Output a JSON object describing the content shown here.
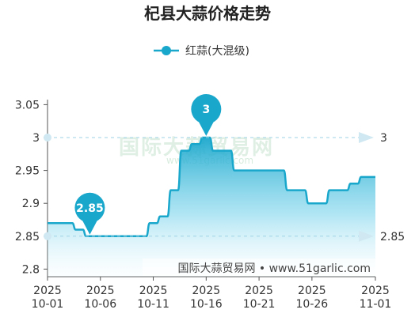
{
  "chart_data": {
    "type": "area",
    "title": "杞县大蒜价格走势",
    "xlabel": "",
    "ylabel": "",
    "ylim": [
      2.78,
      3.07
    ],
    "yticks": [
      "3.05",
      "3",
      "2.95",
      "2.9",
      "2.85",
      "2.8"
    ],
    "xticks": [
      {
        "year": "2025",
        "date": "10-01"
      },
      {
        "year": "2025",
        "date": "10-06"
      },
      {
        "year": "2025",
        "date": "10-11"
      },
      {
        "year": "2025",
        "date": "10-16"
      },
      {
        "year": "2025",
        "date": "10-21"
      },
      {
        "year": "2025",
        "date": "10-26"
      },
      {
        "year": "2025",
        "date": "11-01"
      }
    ],
    "legend": {
      "position": "top",
      "entries": [
        "红蒜(大混级)"
      ]
    },
    "grid": false,
    "series": [
      {
        "name": "红蒜(大混级)",
        "color": "#1aa7cc",
        "points": [
          [
            "10-01",
            2.87
          ],
          [
            "10-02",
            2.87
          ],
          [
            "10-03",
            2.87
          ],
          [
            "10-04",
            2.86
          ],
          [
            "10-05",
            2.85
          ],
          [
            "10-06",
            2.85
          ],
          [
            "10-07",
            2.85
          ],
          [
            "10-08",
            2.85
          ],
          [
            "10-09",
            2.85
          ],
          [
            "10-10",
            2.85
          ],
          [
            "10-11",
            2.87
          ],
          [
            "10-12",
            2.88
          ],
          [
            "10-13",
            2.92
          ],
          [
            "10-14",
            2.98
          ],
          [
            "10-15",
            2.99
          ],
          [
            "10-16",
            3.0
          ],
          [
            "10-17",
            2.98
          ],
          [
            "10-18",
            2.98
          ],
          [
            "10-19",
            2.95
          ],
          [
            "10-20",
            2.95
          ],
          [
            "10-21",
            2.95
          ],
          [
            "10-22",
            2.95
          ],
          [
            "10-23",
            2.95
          ],
          [
            "10-24",
            2.92
          ],
          [
            "10-25",
            2.92
          ],
          [
            "10-26",
            2.9
          ],
          [
            "10-27",
            2.9
          ],
          [
            "10-28",
            2.92
          ],
          [
            "10-29",
            2.92
          ],
          [
            "10-30",
            2.93
          ],
          [
            "10-31",
            2.94
          ],
          [
            "11-01",
            2.94
          ]
        ]
      }
    ],
    "markers": [
      {
        "label": "2.85",
        "date": "10-05",
        "value": 2.85,
        "type": "min"
      },
      {
        "label": "3",
        "date": "10-16",
        "value": 3.0,
        "type": "max"
      }
    ],
    "reference_lines": [
      {
        "label": "3",
        "value": 3.0
      },
      {
        "label": "2.85",
        "value": 2.85
      }
    ],
    "watermark": "国际大蒜贸易网",
    "watermark_url": "www.51garlic.com",
    "source": "国际大蒜贸易网 • www.51garlic.com"
  }
}
